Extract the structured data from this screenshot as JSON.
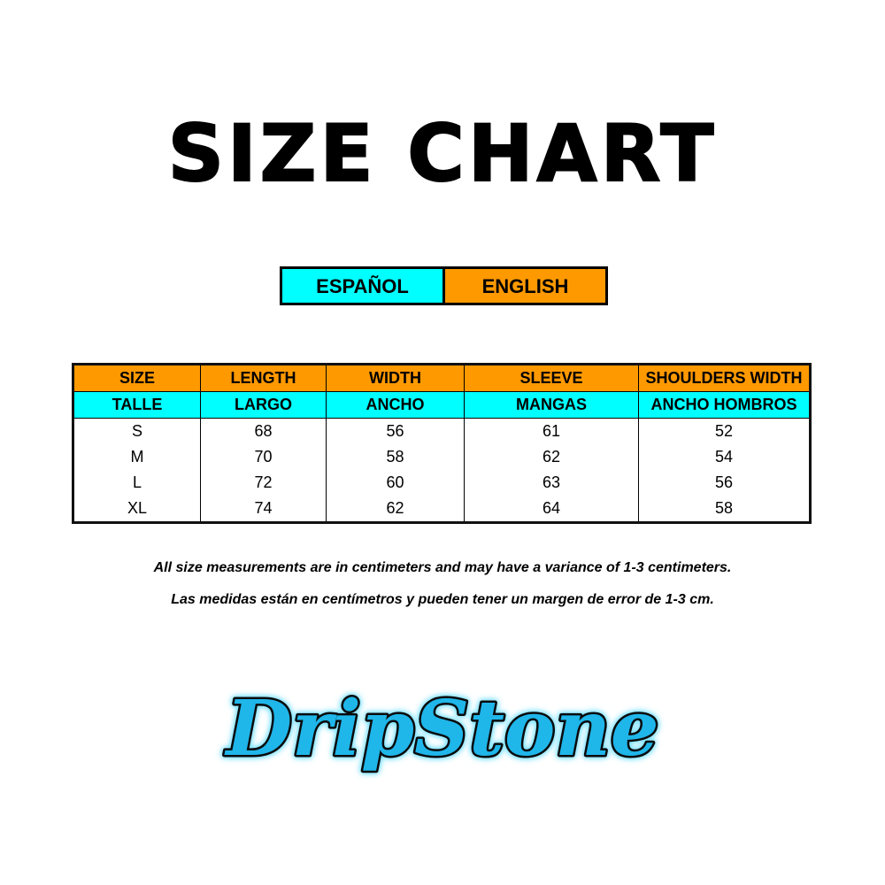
{
  "title": "SIZE CHART",
  "languages": {
    "spanish": "ESPAÑOL",
    "english": "ENGLISH"
  },
  "colors": {
    "english_header": "#ff9900",
    "spanish_header": "#00ffff",
    "logo_blue": "#1fb6ea"
  },
  "table": {
    "headers_en": [
      "SIZE",
      "LENGTH",
      "WIDTH",
      "SLEEVE",
      "SHOULDERS WIDTH"
    ],
    "headers_es": [
      "TALLE",
      "LARGO",
      "ANCHO",
      "MANGAS",
      "ANCHO HOMBROS"
    ],
    "rows": [
      [
        "S",
        "68",
        "56",
        "61",
        "52"
      ],
      [
        "M",
        "70",
        "58",
        "62",
        "54"
      ],
      [
        "L",
        "72",
        "60",
        "63",
        "56"
      ],
      [
        "XL",
        "74",
        "62",
        "64",
        "58"
      ]
    ]
  },
  "notes": {
    "english": "All size measurements are in centimeters and may have a variance of 1-3 centimeters.",
    "spanish": "Las medidas están en centímetros y pueden tener un margen de error de 1-3 cm."
  },
  "logo": {
    "text": "DripStone"
  }
}
